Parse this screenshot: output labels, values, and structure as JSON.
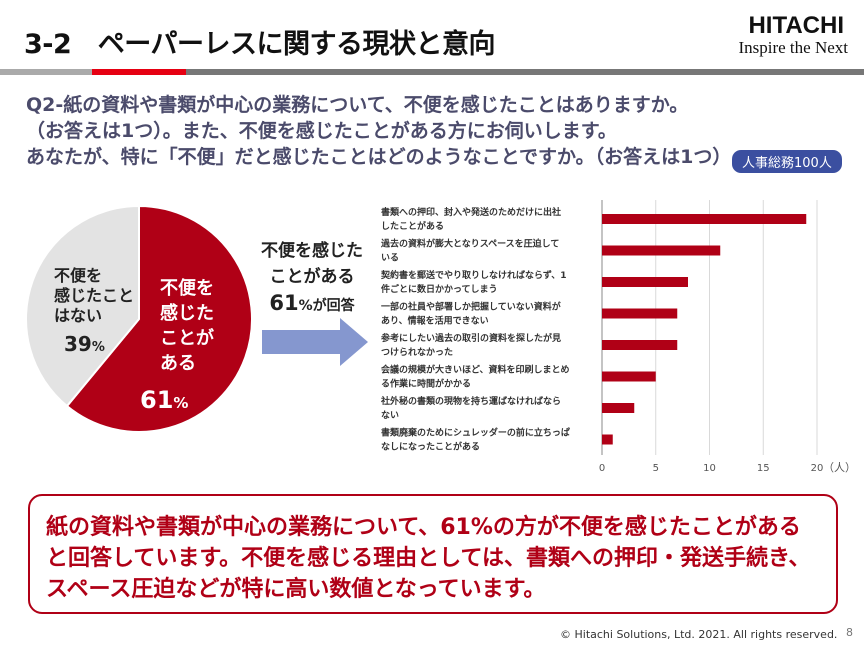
{
  "header": {
    "title": "3-2　ペーパーレスに関する現状と意向",
    "logo_brand": "HITACHI",
    "logo_tagline": "Inspire the Next"
  },
  "question": {
    "lines": [
      "Q2-紙の資料や書類が中心の業務について、不便を感じたことはありますか。",
      "（お答えは1つ）。また、不便を感じたことがある方にお伺いします。",
      "あなたが、特に「不便」だと感じたことはどのようなことですか。（お答えは1つ）"
    ],
    "badge": "人事総務100人"
  },
  "pie": {
    "slices": [
      {
        "label_lines": [
          "不便を",
          "感じた",
          "ことが",
          "ある"
        ],
        "value": 61,
        "value_text": "61",
        "unit": "%",
        "color": "#b00016"
      },
      {
        "label_lines": [
          "不便を",
          "感じたこと",
          "はない"
        ],
        "value": 39,
        "value_text": "39",
        "unit": "%",
        "color": "#e3e3e3"
      }
    ]
  },
  "arrow_text": {
    "line1": "不便を感じた",
    "line2": "ことがある",
    "value": "61",
    "suffix": "%が回答"
  },
  "chart_data": {
    "type": "bar",
    "orientation": "horizontal",
    "categories": [
      [
        "書類への押印、封入や発送のためだけに出社",
        "したことがある"
      ],
      [
        "過去の資料が膨大となりスペースを圧迫して",
        "いる"
      ],
      [
        "契約書を郵送でやり取りしなければならず、1",
        "件ごとに数日かかってしまう"
      ],
      [
        "一部の社員や部署しか把握していない資料が",
        "あり、情報を活用できない"
      ],
      [
        "参考にしたい過去の取引の資料を探したが見",
        "つけられなかった"
      ],
      [
        "会議の規模が大きいほど、資料を印刷しまとめ",
        "る作業に時間がかかる"
      ],
      [
        "社外秘の書類の現物を持ち運ばなければなら",
        "ない"
      ],
      [
        "書類廃棄のためにシュレッダーの前に立ちっぱ",
        "なしになったことがある"
      ]
    ],
    "values": [
      19,
      11,
      8,
      7,
      7,
      5,
      3,
      1
    ],
    "xlim": [
      0,
      20
    ],
    "xticks": [
      "0",
      "5",
      "10",
      "15",
      "20"
    ],
    "xunit": "（人）",
    "grid": true,
    "color": "#b00016"
  },
  "summary": "紙の資料や書類が中心の業務について、61%の方が不便を感じたことがあると回答しています。不便を感じる理由としては、書類への押印・発送手続き、スペース圧迫などが特に高い数値となっています。",
  "footer": {
    "copyright": "© Hitachi Solutions, Ltd. 2021. All rights reserved.",
    "page": "8"
  }
}
